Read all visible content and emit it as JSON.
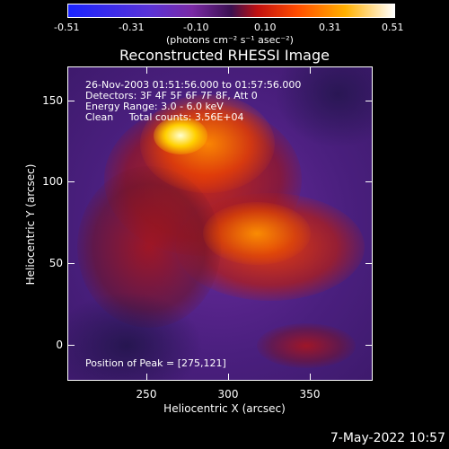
{
  "colorbar": {
    "ticks": [
      "-0.51",
      "-0.31",
      "-0.10",
      "0.10",
      "0.31",
      "0.51"
    ],
    "unit": "(photons cm⁻² s⁻¹ asec⁻²)"
  },
  "title": "Reconstructed RHESSI Image",
  "annotation": {
    "time": "26-Nov-2003 01:51:56.000 to 01:57:56.000",
    "detectors": "Detectors: 3F 4F 5F 6F 7F 8F, Att 0",
    "energy": "Energy Range: 3.0 - 6.0 keV",
    "clean": "Clean     Total counts: 3.56E+04"
  },
  "peak": "Position of Peak = [275,121]",
  "axes": {
    "xlabel": "Heliocentric X (arcsec)",
    "ylabel": "Heliocentric Y (arcsec)",
    "xticks": [
      "250",
      "300",
      "350"
    ],
    "yticks": [
      "150",
      "100",
      "50",
      "0"
    ]
  },
  "date": "7-May-2022 10:57"
}
